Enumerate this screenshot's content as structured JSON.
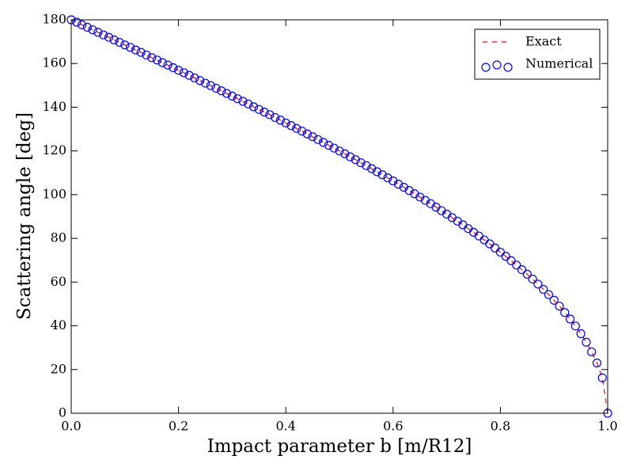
{
  "chart_data": {
    "type": "line",
    "xlabel": "Impact parameter b [m/R12]",
    "ylabel": "Scattering angle [deg]",
    "x": [
      0.0,
      0.01,
      0.02,
      0.03,
      0.04,
      0.05,
      0.06,
      0.07,
      0.08,
      0.09,
      0.1,
      0.11,
      0.12,
      0.13,
      0.14,
      0.15,
      0.16,
      0.17,
      0.18,
      0.19,
      0.2,
      0.21,
      0.22,
      0.23,
      0.24,
      0.25,
      0.26,
      0.27,
      0.28,
      0.29,
      0.3,
      0.31,
      0.32,
      0.33,
      0.34,
      0.35,
      0.36,
      0.37,
      0.38,
      0.39,
      0.4,
      0.41,
      0.42,
      0.43,
      0.44,
      0.45,
      0.46,
      0.47,
      0.48,
      0.49,
      0.5,
      0.51,
      0.52,
      0.53,
      0.54,
      0.55,
      0.56,
      0.57,
      0.58,
      0.59,
      0.6,
      0.61,
      0.62,
      0.63,
      0.64,
      0.65,
      0.66,
      0.67,
      0.68,
      0.69,
      0.7,
      0.71,
      0.72,
      0.73,
      0.74,
      0.75,
      0.76,
      0.77,
      0.78,
      0.79,
      0.8,
      0.81,
      0.82,
      0.83,
      0.84,
      0.85,
      0.86,
      0.87,
      0.88,
      0.89,
      0.9,
      0.91,
      0.92,
      0.93,
      0.94,
      0.95,
      0.96,
      0.97,
      0.98,
      0.99,
      1.0
    ],
    "series": [
      {
        "name": "Exact",
        "color": "#ff0000",
        "style": "dashed",
        "values": [
          180,
          178.9,
          177.7,
          176.6,
          175.4,
          174.3,
          173.1,
          172.0,
          170.8,
          169.7,
          168.5,
          167.4,
          166.2,
          165.1,
          163.9,
          162.7,
          161.6,
          160.4,
          159.3,
          158.1,
          156.9,
          155.8,
          154.6,
          153.4,
          152.2,
          151.0,
          149.9,
          148.7,
          147.5,
          146.3,
          145.1,
          143.9,
          142.7,
          141.5,
          140.2,
          139.0,
          137.8,
          136.6,
          135.3,
          134.1,
          132.8,
          131.6,
          130.3,
          129.1,
          127.8,
          126.5,
          125.2,
          123.9,
          122.6,
          121.3,
          120.0,
          118.7,
          117.3,
          116.0,
          114.6,
          113.3,
          111.9,
          110.5,
          109.1,
          107.7,
          106.3,
          104.8,
          103.4,
          101.9,
          100.4,
          98.9,
          97.4,
          95.9,
          94.3,
          92.7,
          91.1,
          89.5,
          87.9,
          86.2,
          84.5,
          82.8,
          81.1,
          79.3,
          77.5,
          75.6,
          73.7,
          71.8,
          69.8,
          67.8,
          65.7,
          63.6,
          61.4,
          59.1,
          56.7,
          54.3,
          51.7,
          49.0,
          46.1,
          43.1,
          39.9,
          36.4,
          32.5,
          28.1,
          23.0,
          16.2,
          0
        ]
      },
      {
        "name": "Numerical",
        "color": "#0000ff",
        "style": "circles",
        "values": [
          180,
          178.9,
          177.7,
          176.6,
          175.4,
          174.3,
          173.1,
          172.0,
          170.8,
          169.7,
          168.5,
          167.4,
          166.2,
          165.1,
          163.9,
          162.7,
          161.6,
          160.4,
          159.3,
          158.1,
          156.9,
          155.8,
          154.6,
          153.4,
          152.2,
          151.0,
          149.9,
          148.7,
          147.5,
          146.3,
          145.1,
          143.9,
          142.7,
          141.5,
          140.2,
          139.0,
          137.8,
          136.6,
          135.3,
          134.1,
          132.8,
          131.6,
          130.3,
          129.1,
          127.8,
          126.5,
          125.2,
          123.9,
          122.6,
          121.3,
          120.0,
          118.7,
          117.3,
          116.0,
          114.6,
          113.3,
          111.9,
          110.5,
          109.1,
          107.7,
          106.3,
          104.8,
          103.4,
          101.9,
          100.4,
          98.9,
          97.4,
          95.9,
          94.3,
          92.7,
          91.1,
          89.5,
          87.9,
          86.2,
          84.5,
          82.8,
          81.1,
          79.3,
          77.5,
          75.6,
          73.7,
          71.8,
          69.8,
          67.8,
          65.7,
          63.6,
          61.4,
          59.1,
          56.7,
          54.3,
          51.7,
          49.0,
          46.1,
          43.1,
          39.9,
          36.4,
          32.5,
          28.1,
          23.0,
          16.2,
          0
        ]
      }
    ],
    "xlim": [
      0,
      1
    ],
    "ylim": [
      0,
      180
    ],
    "xticks": [
      {
        "value": 0,
        "label": "0.0"
      },
      0.2,
      0.4,
      0.6,
      0.8,
      {
        "value": 1,
        "label": "1.0"
      }
    ],
    "yticks": [
      0,
      20,
      40,
      60,
      80,
      100,
      120,
      140,
      160,
      180
    ],
    "legend": "upper right",
    "grid": false
  }
}
